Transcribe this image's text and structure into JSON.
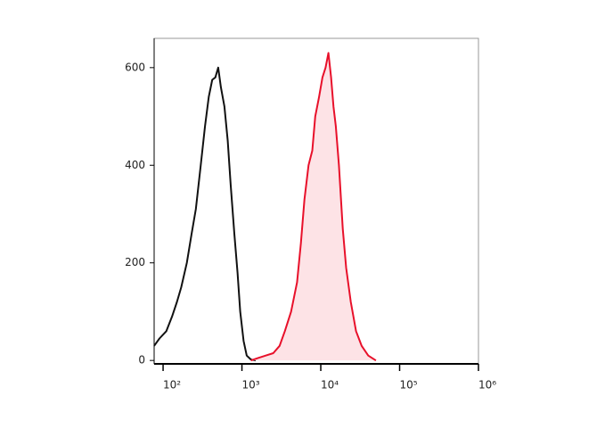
{
  "chart_data": {
    "type": "histogram-overlay",
    "xscale": "log",
    "xlim": [
      77,
      1000000
    ],
    "xticks": [
      {
        "value": 100,
        "label": "10²"
      },
      {
        "value": 1000,
        "label": "10³"
      },
      {
        "value": 10000,
        "label": "10⁴"
      },
      {
        "value": 100000,
        "label": "10⁵"
      },
      {
        "value": 1000000,
        "label": "10⁶"
      }
    ],
    "ylim": [
      -7,
      660
    ],
    "yticks": [
      0,
      200,
      400,
      600
    ],
    "series": [
      {
        "color": "#111111",
        "fill": null,
        "x": [
          77,
          90,
          110,
          130,
          150,
          170,
          200,
          230,
          260,
          300,
          340,
          380,
          420,
          460,
          500,
          540,
          600,
          660,
          720,
          800,
          880,
          950,
          1050,
          1150,
          1300,
          1500
        ],
        "values": [
          30,
          45,
          60,
          90,
          120,
          150,
          200,
          260,
          310,
          400,
          480,
          540,
          575,
          580,
          600,
          560,
          520,
          450,
          360,
          260,
          180,
          100,
          40,
          10,
          2,
          0
        ]
      },
      {
        "color": "#e8102a",
        "fill": "#fde3e6",
        "x": [
          1300,
          1600,
          2000,
          2500,
          3000,
          3500,
          4200,
          5000,
          5600,
          6200,
          7000,
          7800,
          8500,
          9500,
          10500,
          11500,
          12500,
          13500,
          14500,
          15500,
          17000,
          19000,
          21000,
          24000,
          28000,
          33000,
          40000,
          50000
        ],
        "values": [
          0,
          5,
          10,
          15,
          30,
          60,
          100,
          160,
          240,
          330,
          400,
          430,
          500,
          540,
          580,
          600,
          630,
          580,
          520,
          480,
          400,
          270,
          190,
          120,
          60,
          30,
          10,
          0
        ]
      }
    ]
  }
}
